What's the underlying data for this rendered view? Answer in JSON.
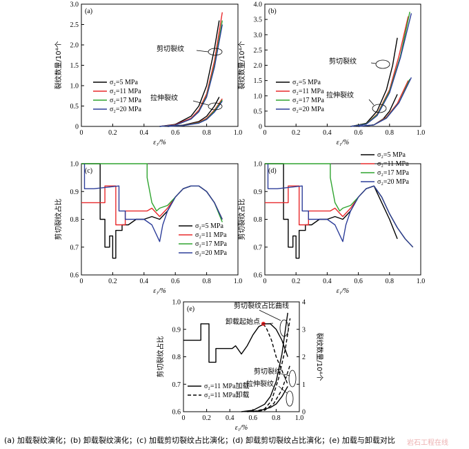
{
  "caption": "(a) 加载裂纹演化；(b) 卸载裂纹演化；(c) 加载剪切裂纹占比演化；(d) 卸载剪切裂纹占比演化；(e) 加载与卸载对比",
  "watermark": "岩石工程在线",
  "colors": {
    "s5": "#000000",
    "s11": "#e8282a",
    "s17": "#2ea32e",
    "s20": "#2c3d99"
  },
  "chart_data": [
    {
      "id": "a",
      "type": "line",
      "panel_label": "(a)",
      "xlabel": "ε₁/%",
      "ylabel": "裂纹数量/10⁴个",
      "xlim": [
        0,
        1.0
      ],
      "ylim": [
        0,
        3.0
      ],
      "xticks": [
        "0",
        "0.2",
        "0.4",
        "0.6",
        "0.8",
        "1.0"
      ],
      "yticks": [
        "0",
        "0.5",
        "1.0",
        "1.5",
        "2.0",
        "2.5",
        "3.0"
      ],
      "legend": [
        "σ₂=5 MPa",
        "σ₂=11 MPa",
        "σ₂=17 MPa",
        "σ₂=20 MPa"
      ],
      "legend_position": "center-left",
      "annotations": [
        "剪切裂纹",
        "拉伸裂纹"
      ],
      "series": [
        {
          "name": "σ₂=5 MPa",
          "color": "s5",
          "x": [
            0.5,
            0.6,
            0.7,
            0.75,
            0.8,
            0.85,
            0.88
          ],
          "y": [
            0,
            0.05,
            0.25,
            0.5,
            1.0,
            1.9,
            2.6
          ]
        },
        {
          "name": "σ₂=11 MPa",
          "color": "s11",
          "x": [
            0.5,
            0.6,
            0.7,
            0.75,
            0.8,
            0.85,
            0.9
          ],
          "y": [
            0,
            0.04,
            0.2,
            0.4,
            0.8,
            1.6,
            2.8
          ]
        },
        {
          "name": "σ₂=17 MPa",
          "color": "s17",
          "x": [
            0.5,
            0.6,
            0.7,
            0.75,
            0.8,
            0.85,
            0.9
          ],
          "y": [
            0,
            0.03,
            0.18,
            0.37,
            0.75,
            1.5,
            2.6
          ]
        },
        {
          "name": "σ₂=20 MPa",
          "color": "s20",
          "x": [
            0.5,
            0.6,
            0.7,
            0.75,
            0.8,
            0.85,
            0.9
          ],
          "y": [
            0,
            0.03,
            0.18,
            0.36,
            0.72,
            1.45,
            2.5
          ]
        },
        {
          "name": "σ₂=5 MPa",
          "color": "s5",
          "x": [
            0.55,
            0.65,
            0.75,
            0.8,
            0.85,
            0.88
          ],
          "y": [
            0,
            0.03,
            0.12,
            0.25,
            0.5,
            0.72
          ]
        },
        {
          "name": "σ₂=11 MPa",
          "color": "s11",
          "x": [
            0.55,
            0.65,
            0.75,
            0.8,
            0.85,
            0.9
          ],
          "y": [
            0,
            0.02,
            0.1,
            0.2,
            0.4,
            0.68
          ]
        },
        {
          "name": "σ₂=17 MPa",
          "color": "s17",
          "x": [
            0.55,
            0.65,
            0.75,
            0.8,
            0.85,
            0.9
          ],
          "y": [
            0,
            0.02,
            0.09,
            0.18,
            0.38,
            0.65
          ]
        },
        {
          "name": "σ₂=20 MPa",
          "color": "s20",
          "x": [
            0.55,
            0.65,
            0.75,
            0.8,
            0.85,
            0.9
          ],
          "y": [
            0,
            0.02,
            0.08,
            0.17,
            0.35,
            0.62
          ]
        }
      ]
    },
    {
      "id": "b",
      "type": "line",
      "panel_label": "(b)",
      "xlabel": "ε₁/%",
      "ylabel": "裂纹数量/10⁴个",
      "xlim": [
        0,
        1.0
      ],
      "ylim": [
        0,
        4.0
      ],
      "xticks": [
        "0",
        "0.2",
        "0.4",
        "0.6",
        "0.8",
        "1.0"
      ],
      "yticks": [
        "0",
        "0.5",
        "1.0",
        "1.5",
        "2.0",
        "2.5",
        "3.0",
        "3.5",
        "4.0"
      ],
      "legend": [
        "σ₂=5 MPa",
        "σ₂=11 MPa",
        "σ₂=17 MPa",
        "σ₂=20 MPa"
      ],
      "legend_position": "center-left",
      "annotations": [
        "剪切裂纹",
        "拉伸裂纹"
      ],
      "series": [
        {
          "name": "σ₂=5 MPa",
          "color": "s5",
          "x": [
            0.55,
            0.65,
            0.72,
            0.78,
            0.82,
            0.85
          ],
          "y": [
            0,
            0.1,
            0.5,
            1.2,
            2.0,
            2.9
          ]
        },
        {
          "name": "σ₂=11 MPa",
          "color": "s11",
          "x": [
            0.55,
            0.65,
            0.72,
            0.8,
            0.86,
            0.92
          ],
          "y": [
            0,
            0.08,
            0.4,
            1.2,
            2.3,
            3.6
          ]
        },
        {
          "name": "σ₂=17 MPa",
          "color": "s17",
          "x": [
            0.55,
            0.65,
            0.72,
            0.8,
            0.87,
            0.93
          ],
          "y": [
            0,
            0.08,
            0.38,
            1.15,
            2.3,
            3.75
          ]
        },
        {
          "name": "σ₂=20 MPa",
          "color": "s20",
          "x": [
            0.55,
            0.65,
            0.72,
            0.8,
            0.87,
            0.94
          ],
          "y": [
            0,
            0.07,
            0.35,
            1.1,
            2.25,
            3.7
          ]
        },
        {
          "name": "σ₂=5 MPa",
          "color": "s5",
          "x": [
            0.6,
            0.7,
            0.76,
            0.8,
            0.85
          ],
          "y": [
            0,
            0.05,
            0.25,
            0.5,
            1.05
          ]
        },
        {
          "name": "σ₂=11 MPa",
          "color": "s11",
          "x": [
            0.6,
            0.7,
            0.78,
            0.85,
            0.92
          ],
          "y": [
            0,
            0.05,
            0.3,
            0.75,
            1.5
          ]
        },
        {
          "name": "σ₂=17 MPa",
          "color": "s17",
          "x": [
            0.6,
            0.7,
            0.78,
            0.86,
            0.93
          ],
          "y": [
            0,
            0.05,
            0.28,
            0.78,
            1.55
          ]
        },
        {
          "name": "σ₂=20 MPa",
          "color": "s20",
          "x": [
            0.6,
            0.7,
            0.78,
            0.86,
            0.94
          ],
          "y": [
            0,
            0.05,
            0.27,
            0.77,
            1.6
          ]
        }
      ]
    },
    {
      "id": "c",
      "type": "line",
      "panel_label": "(c)",
      "xlabel": "ε₁/%",
      "ylabel": "剪切裂纹占比",
      "xlim": [
        0,
        1.0
      ],
      "ylim": [
        0.6,
        1.0
      ],
      "xticks": [
        "0",
        "0.2",
        "0.4",
        "0.6",
        "0.8",
        "1.0"
      ],
      "yticks": [
        "0.6",
        "0.7",
        "0.8",
        "0.9",
        "1.0"
      ],
      "legend": [
        "σ₂=5 MPa",
        "σ₂=11 MPa",
        "σ₂=17 MPa",
        "σ₂=20 MPa"
      ],
      "legend_position": "bottom-right",
      "series": [
        {
          "name": "σ₂=5 MPa",
          "color": "s5",
          "x": [
            0,
            0.12,
            0.12,
            0.15,
            0.15,
            0.18,
            0.18,
            0.2,
            0.2,
            0.22,
            0.22,
            0.26,
            0.26,
            0.3,
            0.35,
            0.4,
            0.45,
            0.5,
            0.55,
            0.6,
            0.65,
            0.7,
            0.75,
            0.8,
            0.85,
            0.9
          ],
          "y": [
            1.0,
            1.0,
            0.8,
            0.8,
            0.7,
            0.7,
            0.74,
            0.74,
            0.66,
            0.66,
            0.76,
            0.76,
            0.78,
            0.78,
            0.8,
            0.8,
            0.81,
            0.8,
            0.83,
            0.88,
            0.91,
            0.92,
            0.92,
            0.9,
            0.86,
            0.8
          ]
        },
        {
          "name": "σ₂=11 MPa",
          "color": "s11",
          "x": [
            0,
            0.04,
            0.04,
            0.15,
            0.15,
            0.22,
            0.22,
            0.25,
            0.25,
            0.28,
            0.28,
            0.35,
            0.42,
            0.45,
            0.5,
            0.55,
            0.6,
            0.65,
            0.7,
            0.75,
            0.8,
            0.85,
            0.9
          ],
          "y": [
            0.86,
            0.86,
            0.86,
            0.86,
            0.92,
            0.92,
            0.78,
            0.78,
            0.78,
            0.78,
            0.83,
            0.83,
            0.83,
            0.84,
            0.81,
            0.84,
            0.88,
            0.91,
            0.92,
            0.92,
            0.9,
            0.86,
            0.8
          ]
        },
        {
          "name": "σ₂=17 MPa",
          "color": "s17",
          "x": [
            0,
            0.42,
            0.42,
            0.45,
            0.48,
            0.5,
            0.55,
            0.6,
            0.65,
            0.7,
            0.75,
            0.8,
            0.85,
            0.9
          ],
          "y": [
            1.0,
            1.0,
            0.95,
            0.86,
            0.83,
            0.84,
            0.85,
            0.88,
            0.91,
            0.92,
            0.92,
            0.9,
            0.86,
            0.79
          ]
        },
        {
          "name": "σ₂=20 MPa",
          "color": "s20",
          "x": [
            0.02,
            0.02,
            0.08,
            0.08,
            0.24,
            0.24,
            0.28,
            0.28,
            0.4,
            0.45,
            0.5,
            0.52,
            0.55,
            0.6,
            0.65,
            0.7,
            0.75,
            0.8,
            0.85,
            0.9
          ],
          "y": [
            1.0,
            0.91,
            0.91,
            0.91,
            0.92,
            0.83,
            0.83,
            0.8,
            0.8,
            0.78,
            0.72,
            0.78,
            0.83,
            0.88,
            0.91,
            0.92,
            0.92,
            0.9,
            0.86,
            0.8
          ]
        }
      ]
    },
    {
      "id": "d",
      "type": "line",
      "panel_label": "(d)",
      "xlabel": "ε₁/%",
      "ylabel": "剪切裂纹占比",
      "xlim": [
        0,
        1.0
      ],
      "ylim": [
        0.6,
        1.0
      ],
      "xticks": [
        "0",
        "0.2",
        "0.4",
        "0.6",
        "0.8",
        "1.0"
      ],
      "yticks": [
        "0.6",
        "0.7",
        "0.8",
        "0.9",
        "1.0"
      ],
      "legend": [
        "σ₂=5 MPa",
        "σ₂=11 MPa",
        "σ₂=17 MPa",
        "σ₂=20 MPa"
      ],
      "legend_position": "top-right",
      "series": [
        {
          "name": "σ₂=5 MPa",
          "color": "s5",
          "x": [
            0,
            0.12,
            0.12,
            0.15,
            0.15,
            0.18,
            0.18,
            0.2,
            0.2,
            0.22,
            0.22,
            0.26,
            0.26,
            0.3,
            0.35,
            0.4,
            0.45,
            0.5,
            0.55,
            0.6,
            0.65,
            0.7,
            0.75,
            0.8,
            0.85
          ],
          "y": [
            1.0,
            1.0,
            0.8,
            0.8,
            0.7,
            0.7,
            0.74,
            0.74,
            0.66,
            0.66,
            0.76,
            0.76,
            0.78,
            0.78,
            0.8,
            0.8,
            0.81,
            0.8,
            0.83,
            0.88,
            0.91,
            0.92,
            0.86,
            0.8,
            0.73
          ]
        },
        {
          "name": "σ₂=11 MPa",
          "color": "s11",
          "x": [
            0,
            0.04,
            0.04,
            0.15,
            0.15,
            0.22,
            0.22,
            0.28,
            0.28,
            0.35,
            0.42,
            0.45,
            0.5,
            0.55,
            0.6,
            0.65,
            0.7,
            0.75,
            0.8,
            0.85,
            0.9,
            0.95
          ],
          "y": [
            0.86,
            0.86,
            0.86,
            0.86,
            0.92,
            0.92,
            0.78,
            0.78,
            0.83,
            0.83,
            0.83,
            0.84,
            0.81,
            0.84,
            0.88,
            0.91,
            0.92,
            0.88,
            0.82,
            0.77,
            0.73,
            0.7
          ]
        },
        {
          "name": "σ₂=17 MPa",
          "color": "s17",
          "x": [
            0,
            0.42,
            0.42,
            0.45,
            0.48,
            0.5,
            0.55,
            0.6,
            0.65,
            0.7,
            0.75,
            0.8,
            0.85,
            0.9,
            0.95
          ],
          "y": [
            1.0,
            1.0,
            0.95,
            0.86,
            0.83,
            0.84,
            0.85,
            0.88,
            0.91,
            0.92,
            0.88,
            0.82,
            0.77,
            0.73,
            0.7
          ]
        },
        {
          "name": "σ₂=20 MPa",
          "color": "s20",
          "x": [
            0.02,
            0.02,
            0.08,
            0.08,
            0.24,
            0.24,
            0.28,
            0.28,
            0.4,
            0.45,
            0.5,
            0.52,
            0.55,
            0.6,
            0.65,
            0.7,
            0.75,
            0.8,
            0.85,
            0.9,
            0.95
          ],
          "y": [
            1.0,
            0.91,
            0.91,
            0.91,
            0.92,
            0.83,
            0.83,
            0.8,
            0.8,
            0.78,
            0.72,
            0.78,
            0.83,
            0.88,
            0.91,
            0.92,
            0.88,
            0.82,
            0.77,
            0.73,
            0.7
          ]
        }
      ]
    },
    {
      "id": "e",
      "type": "line",
      "panel_label": "(e)",
      "xlabel": "ε₁/%",
      "ylabel": "剪切裂纹占比",
      "ylabel_right": "裂纹数量/10⁴个",
      "xlim": [
        0,
        1.0
      ],
      "ylim": [
        0.6,
        1.0
      ],
      "ylim_right": [
        0,
        4
      ],
      "xticks": [
        "0",
        "0.2",
        "0.4",
        "0.6",
        "0.8",
        "1.0"
      ],
      "yticks": [
        "0.6",
        "0.7",
        "0.8",
        "0.9",
        "1.0"
      ],
      "yticks_right": [
        "0",
        "1",
        "2",
        "3",
        "4"
      ],
      "legend": [
        "σ₂=11 MPa加载",
        "σ₂=11 MPa卸载"
      ],
      "legend_position": "bottom-left",
      "annotations": [
        "剪切裂纹占比曲线",
        "卸载起始点",
        "剪切裂纹",
        "拉伸裂纹"
      ],
      "unload_start": {
        "x": 0.69,
        "y": 0.92
      },
      "series": [
        {
          "name": "σ₂=11 MPa加载",
          "style": "solid",
          "axis": "left",
          "x": [
            0,
            0.04,
            0.04,
            0.15,
            0.15,
            0.22,
            0.22,
            0.28,
            0.28,
            0.35,
            0.42,
            0.45,
            0.5,
            0.55,
            0.6,
            0.65,
            0.7,
            0.75,
            0.8,
            0.85,
            0.9
          ],
          "y": [
            0.86,
            0.86,
            0.86,
            0.86,
            0.92,
            0.92,
            0.78,
            0.78,
            0.83,
            0.83,
            0.83,
            0.84,
            0.81,
            0.84,
            0.88,
            0.91,
            0.92,
            0.92,
            0.9,
            0.86,
            0.8
          ]
        },
        {
          "name": "σ₂=11 MPa卸载",
          "style": "dash",
          "axis": "left",
          "x": [
            0.69,
            0.72,
            0.76,
            0.8,
            0.85,
            0.9
          ],
          "y": [
            0.92,
            0.9,
            0.86,
            0.8,
            0.75,
            0.7
          ]
        },
        {
          "name": "σ₂=11 MPa加载",
          "style": "solid",
          "axis": "right",
          "x": [
            0.5,
            0.6,
            0.7,
            0.75,
            0.8,
            0.85,
            0.9
          ],
          "y": [
            0,
            0.05,
            0.27,
            0.55,
            1.1,
            2.1,
            3.6
          ]
        },
        {
          "name": "σ₂=11 MPa卸载",
          "style": "dash",
          "axis": "right",
          "x": [
            0.6,
            0.7,
            0.76,
            0.82,
            0.88,
            0.92
          ],
          "y": [
            0,
            0.1,
            0.4,
            1.2,
            2.3,
            3.4
          ]
        },
        {
          "name": "σ₂=11 MPa加载",
          "style": "solid",
          "axis": "right",
          "x": [
            0.55,
            0.65,
            0.75,
            0.8,
            0.85,
            0.9
          ],
          "y": [
            0,
            0.03,
            0.15,
            0.28,
            0.55,
            0.92
          ]
        },
        {
          "name": "σ₂=11 MPa卸载",
          "style": "dash",
          "axis": "right",
          "x": [
            0.6,
            0.7,
            0.78,
            0.85,
            0.92
          ],
          "y": [
            0,
            0.05,
            0.3,
            0.8,
            1.7
          ]
        }
      ]
    }
  ]
}
